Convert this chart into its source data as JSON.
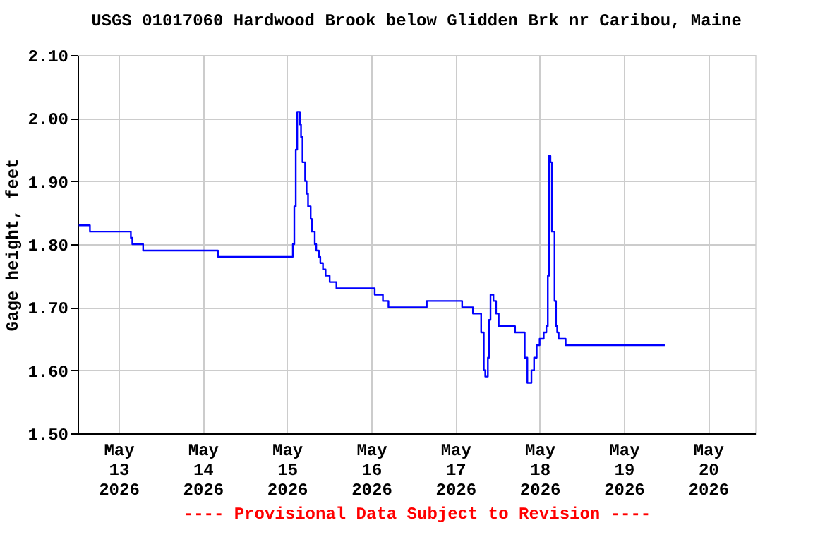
{
  "chart_data": {
    "type": "step",
    "title": "USGS 01017060 Hardwood Brook below Glidden Brk nr Caribou, Maine",
    "ylabel": "Gage height, feet",
    "annotations": [
      "---- Provisional Data Subject to Revision ----"
    ],
    "xlim": [
      "2026-05-12T12:20",
      "2026-05-20T13:25"
    ],
    "xticks": [
      {
        "value": "2026-05-13",
        "label": "May 13 2026"
      },
      {
        "value": "2026-05-14",
        "label": "May 14 2026"
      },
      {
        "value": "2026-05-15",
        "label": "May 15 2026"
      },
      {
        "value": "2026-05-16",
        "label": "May 16 2026"
      },
      {
        "value": "2026-05-17",
        "label": "May 17 2026"
      },
      {
        "value": "2026-05-18",
        "label": "May 18 2026"
      },
      {
        "value": "2026-05-19",
        "label": "May 19 2026"
      },
      {
        "value": "2026-05-20",
        "label": "May 20 2026"
      }
    ],
    "ylim": [
      1.5,
      2.1
    ],
    "yticks": [
      {
        "value": 1.5,
        "label": "1.50"
      },
      {
        "value": 1.6,
        "label": "1.60"
      },
      {
        "value": 1.7,
        "label": "1.70"
      },
      {
        "value": 1.8,
        "label": "1.80"
      },
      {
        "value": 1.9,
        "label": "1.90"
      },
      {
        "value": 2.0,
        "label": "2.00"
      },
      {
        "value": 2.1,
        "label": "2.10"
      }
    ],
    "grid": true,
    "marker": "none",
    "line_style": "solid",
    "series": [
      {
        "color": "#0000ff",
        "x": [
          "2026-05-12T12:40",
          "2026-05-12T15:50",
          "2026-05-13T03:30",
          "2026-05-13T03:55",
          "2026-05-13T07:00",
          "2026-05-14T04:20",
          "2026-05-15T01:40",
          "2026-05-15T02:05",
          "2026-05-15T02:30",
          "2026-05-15T02:55",
          "2026-05-15T03:40",
          "2026-05-15T04:00",
          "2026-05-15T04:25",
          "2026-05-15T05:10",
          "2026-05-15T05:35",
          "2026-05-15T06:00",
          "2026-05-15T06:45",
          "2026-05-15T07:05",
          "2026-05-15T07:55",
          "2026-05-15T08:20",
          "2026-05-15T09:05",
          "2026-05-15T09:30",
          "2026-05-15T10:15",
          "2026-05-15T11:00",
          "2026-05-15T12:10",
          "2026-05-15T14:05",
          "2026-05-16T01:00",
          "2026-05-16T03:20",
          "2026-05-16T04:55",
          "2026-05-16T15:50",
          "2026-05-17T01:55",
          "2026-05-17T05:00",
          "2026-05-17T07:20",
          "2026-05-17T08:05",
          "2026-05-17T08:30",
          "2026-05-17T09:15",
          "2026-05-17T09:35",
          "2026-05-17T10:00",
          "2026-05-17T10:50",
          "2026-05-17T11:35",
          "2026-05-17T12:20",
          "2026-05-17T17:00",
          "2026-05-17T19:45",
          "2026-05-17T20:30",
          "2026-05-17T21:40",
          "2026-05-17T22:25",
          "2026-05-17T23:10",
          "2026-05-18T00:00",
          "2026-05-18T01:10",
          "2026-05-18T01:55",
          "2026-05-18T02:20",
          "2026-05-18T02:40",
          "2026-05-18T03:05",
          "2026-05-18T03:30",
          "2026-05-18T04:15",
          "2026-05-18T04:40",
          "2026-05-18T05:00",
          "2026-05-18T05:25",
          "2026-05-18T07:25",
          "2026-05-19T11:40"
        ],
        "values": [
          1.83,
          1.82,
          1.81,
          1.8,
          1.79,
          1.78,
          1.8,
          1.86,
          1.95,
          2.01,
          1.99,
          1.97,
          1.93,
          1.9,
          1.88,
          1.86,
          1.84,
          1.82,
          1.8,
          1.79,
          1.78,
          1.77,
          1.76,
          1.75,
          1.74,
          1.73,
          1.72,
          1.71,
          1.7,
          1.71,
          1.7,
          1.69,
          1.66,
          1.6,
          1.59,
          1.62,
          1.68,
          1.72,
          1.71,
          1.69,
          1.67,
          1.66,
          1.62,
          1.58,
          1.6,
          1.62,
          1.64,
          1.65,
          1.66,
          1.67,
          1.75,
          1.94,
          1.93,
          1.82,
          1.71,
          1.67,
          1.66,
          1.65,
          1.64,
          1.64
        ]
      }
    ]
  }
}
